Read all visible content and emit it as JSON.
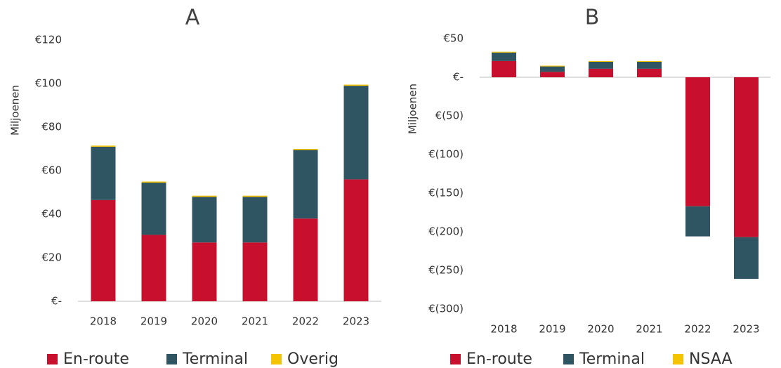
{
  "chart_data": [
    {
      "type": "bar",
      "stacked": true,
      "title": "A",
      "y_label": "Miljoenen",
      "categories": [
        "2018",
        "2019",
        "2020",
        "2021",
        "2022",
        "2023"
      ],
      "series": [
        {
          "name": "En-route",
          "color": "#c8102e",
          "values": [
            46.5,
            30.5,
            27,
            27,
            38,
            56
          ]
        },
        {
          "name": "Terminal",
          "color": "#2f5563",
          "values": [
            24.5,
            24,
            21,
            21,
            31.5,
            43
          ]
        },
        {
          "name": "Overig",
          "color": "#f5c400",
          "values": [
            0.5,
            0.5,
            0.5,
            0.5,
            0.5,
            0.5
          ]
        }
      ],
      "ylim": [
        0,
        120
      ],
      "yticks": [
        {
          "value": 0,
          "label": "€-"
        },
        {
          "value": 20,
          "label": "€20"
        },
        {
          "value": 40,
          "label": "€40"
        },
        {
          "value": 60,
          "label": "€60"
        },
        {
          "value": 80,
          "label": "€80"
        },
        {
          "value": 100,
          "label": "€100"
        },
        {
          "value": 120,
          "label": "€120"
        }
      ],
      "grid": false,
      "legend": "bottom"
    },
    {
      "type": "bar",
      "stacked": true,
      "title": "B",
      "y_label": "Miljoenen",
      "categories": [
        "2018",
        "2019",
        "2020",
        "2021",
        "2022",
        "2023"
      ],
      "series": [
        {
          "name": "En-route",
          "color": "#c8102e",
          "values": [
            21,
            7,
            11,
            11,
            -167,
            -207
          ]
        },
        {
          "name": "Terminal",
          "color": "#2f5563",
          "values": [
            11,
            7,
            9,
            9,
            -39,
            -54
          ]
        },
        {
          "name": "NSAA",
          "color": "#f5c400",
          "values": [
            1,
            1,
            1,
            1,
            0,
            0
          ]
        }
      ],
      "ylim": [
        -300,
        50
      ],
      "yticks": [
        {
          "value": 50,
          "label": "€50"
        },
        {
          "value": 0,
          "label": "€-"
        },
        {
          "value": -50,
          "label": "€(50)"
        },
        {
          "value": -100,
          "label": "€(100)"
        },
        {
          "value": -150,
          "label": "€(150)"
        },
        {
          "value": -200,
          "label": "€(200)"
        },
        {
          "value": -250,
          "label": "€(250)"
        },
        {
          "value": -300,
          "label": "€(300)"
        }
      ],
      "grid": false,
      "legend": "bottom"
    }
  ]
}
